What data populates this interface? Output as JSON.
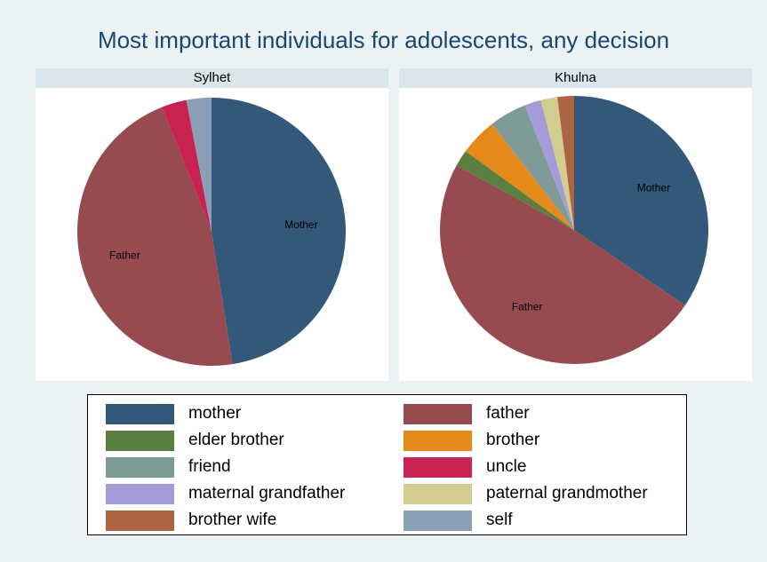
{
  "chart_data": {
    "type": "pie",
    "title": "Most important individuals for adolescents, any decision",
    "categories": [
      "mother",
      "father",
      "elder brother",
      "brother",
      "friend",
      "uncle",
      "maternal grandfather",
      "paternal grandmother",
      "brother wife",
      "self"
    ],
    "colors": {
      "mother": "#335879",
      "father": "#984a51",
      "elder brother": "#5b7f40",
      "brother": "#e5891b",
      "friend": "#7f9b97",
      "uncle": "#c82351",
      "maternal grandfather": "#a49bd8",
      "paternal grandmother": "#d2cc8f",
      "brother wife": "#ae6342",
      "self": "#8a9fb5"
    },
    "panels": [
      {
        "name": "Sylhet",
        "slices": [
          {
            "category": "mother",
            "value": 47.5,
            "label": "Mother"
          },
          {
            "category": "father",
            "value": 46.5,
            "label": "Father"
          },
          {
            "category": "uncle",
            "value": 3.0,
            "label": ""
          },
          {
            "category": "self",
            "value": 3.0,
            "label": ""
          }
        ]
      },
      {
        "name": "Khulna",
        "slices": [
          {
            "category": "mother",
            "value": 34.5,
            "label": "Mother"
          },
          {
            "category": "father",
            "value": 48.5,
            "label": "Father"
          },
          {
            "category": "elder brother",
            "value": 2.0,
            "label": ""
          },
          {
            "category": "brother",
            "value": 4.5,
            "label": ""
          },
          {
            "category": "friend",
            "value": 4.5,
            "label": ""
          },
          {
            "category": "maternal grandfather",
            "value": 2.0,
            "label": ""
          },
          {
            "category": "paternal grandmother",
            "value": 2.0,
            "label": ""
          },
          {
            "category": "brother wife",
            "value": 2.0,
            "label": ""
          }
        ]
      }
    ],
    "legend": {
      "placement": "bottom",
      "columns": [
        [
          "mother",
          "elder brother",
          "friend",
          "maternal grandfather",
          "brother wife"
        ],
        [
          "father",
          "brother",
          "uncle",
          "paternal grandmother",
          "self"
        ]
      ]
    }
  }
}
